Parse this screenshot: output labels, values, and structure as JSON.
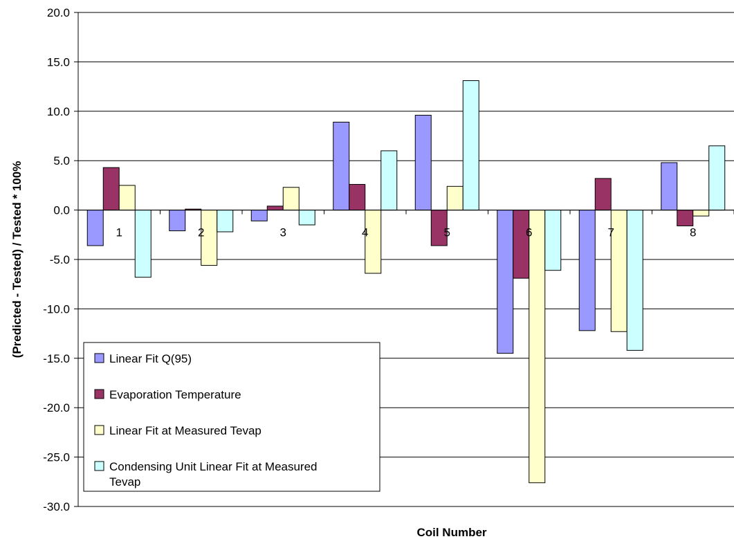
{
  "chart_data": {
    "type": "bar",
    "title": "",
    "xlabel": "Coil Number",
    "ylabel": "(Predicted - Tested) / Tested * 100%",
    "ylim": [
      -30,
      20
    ],
    "y_ticks": [
      "20.0",
      "15.0",
      "10.0",
      "5.0",
      "0.0",
      "-5.0",
      "-10.0",
      "-15.0",
      "-20.0",
      "-25.0",
      "-30.0"
    ],
    "grid": true,
    "legend_position": "bottom-left inside",
    "categories": [
      "1",
      "2",
      "3",
      "4",
      "5",
      "6",
      "7",
      "8"
    ],
    "series": [
      {
        "name": "Linear Fit Q(95)",
        "color": "#9999ff",
        "values": [
          -3.6,
          -2.1,
          -1.1,
          8.9,
          9.6,
          -14.5,
          -12.2,
          4.8
        ]
      },
      {
        "name": "Evaporation Temperature",
        "color": "#993366",
        "values": [
          4.3,
          0.1,
          0.4,
          2.6,
          -3.6,
          -6.9,
          3.2,
          -1.6
        ]
      },
      {
        "name": "Linear Fit at Measured Tevap",
        "color": "#ffffcc",
        "values": [
          2.5,
          -5.6,
          2.3,
          -6.4,
          2.4,
          -27.6,
          -12.3,
          -0.6
        ]
      },
      {
        "name": "Condensing Unit Linear Fit at Measured Tevap",
        "color": "#ccffff",
        "values": [
          -6.8,
          -2.2,
          -1.5,
          6.0,
          13.1,
          -6.1,
          -14.2,
          6.5
        ]
      }
    ]
  }
}
